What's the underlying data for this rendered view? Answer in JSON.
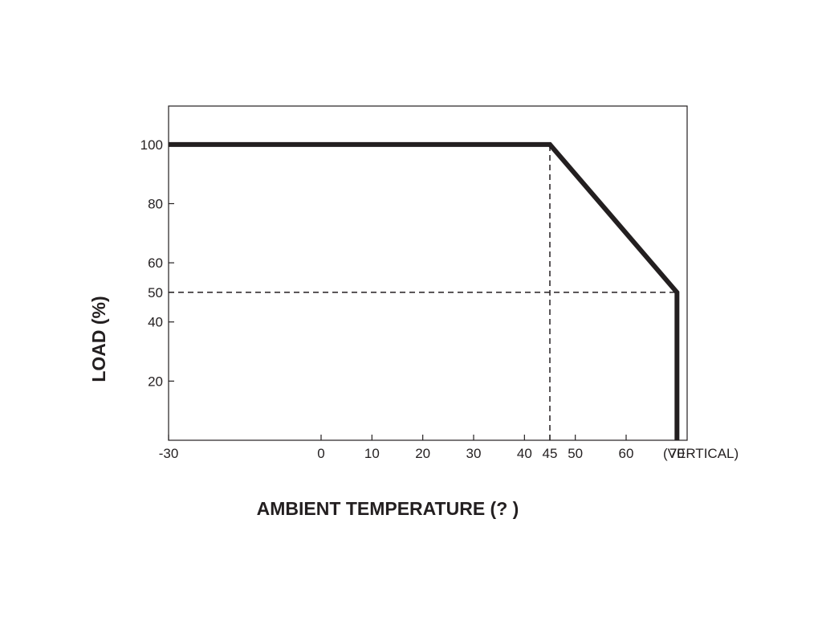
{
  "chart_data": {
    "type": "line",
    "xlabel": "AMBIENT TEMPERATURE (? )",
    "ylabel": "LOAD (%)",
    "x_ticks": [
      -30,
      0,
      10,
      20,
      30,
      40,
      45,
      50,
      60,
      70
    ],
    "y_ticks": [
      20,
      40,
      50,
      60,
      80,
      100
    ],
    "xlim": [
      -30,
      72
    ],
    "ylim": [
      0,
      113
    ],
    "x_annotation": "(VERTICAL)",
    "grid": false,
    "series": [
      {
        "x": [
          -30,
          45,
          70,
          70
        ],
        "y": [
          100,
          100,
          50,
          0
        ],
        "color": "#231f20"
      }
    ],
    "reference_lines": [
      {
        "orientation": "vertical",
        "x": 45,
        "y_from": 0,
        "y_to": 100
      },
      {
        "orientation": "horizontal",
        "y": 50,
        "x_from": -30,
        "x_to": 70
      }
    ]
  }
}
